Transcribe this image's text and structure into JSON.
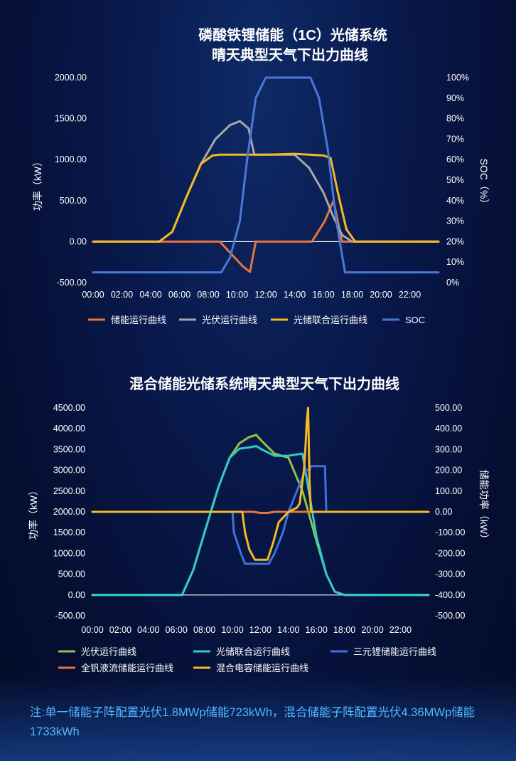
{
  "chart_data": [
    {
      "type": "line",
      "title": [
        "磷酸铁锂储能（1C）光储系统",
        "晴天典型天气下出力曲线"
      ],
      "ylabel": "功率（kW）",
      "y2label": "SOC（%）",
      "ylim": [
        -500,
        2000
      ],
      "y2lim": [
        0,
        100
      ],
      "xlim": [
        0,
        24
      ],
      "x_ticks": [
        "00:00",
        "02:00",
        "04:00",
        "06:00",
        "08:00",
        "10:00",
        "12:00",
        "14:00",
        "16:00",
        "18:00",
        "20:00",
        "22:00"
      ],
      "y_ticks": [
        "-500.00",
        "0.00",
        "500.00",
        "1000.00",
        "1500.00",
        "2000.00"
      ],
      "y2_ticks": [
        "0%",
        "10%",
        "20%",
        "30%",
        "40%",
        "50%",
        "60%",
        "70%",
        "80%",
        "90%",
        "100%"
      ],
      "legend_position": "bottom",
      "series": [
        {
          "name": "储能运行曲线",
          "color": "#e8743b",
          "axis": "left",
          "x": [
            0,
            8.8,
            9.6,
            10.4,
            10.9,
            11.3,
            15.2,
            16.1,
            16.7,
            17.3,
            18,
            24
          ],
          "y": [
            0,
            0,
            -150,
            -300,
            -370,
            0,
            0,
            250,
            500,
            0,
            0,
            0
          ]
        },
        {
          "name": "光伏运行曲线",
          "color": "#a8a8a8",
          "axis": "left",
          "x": [
            0,
            4.6,
            5.5,
            6.5,
            7.5,
            8.5,
            9.5,
            10.2,
            10.8,
            11.2,
            12,
            14,
            15,
            16,
            16.7,
            17.3,
            18,
            24
          ],
          "y": [
            0,
            0,
            120,
            550,
            950,
            1250,
            1420,
            1470,
            1380,
            1060,
            1060,
            1060,
            900,
            600,
            300,
            80,
            0,
            0
          ]
        },
        {
          "name": "光储联合运行曲线",
          "color": "#f5b921",
          "axis": "left",
          "x": [
            0,
            4.6,
            5.5,
            6.5,
            7.5,
            8.3,
            8.8,
            12,
            14,
            16,
            16.5,
            17,
            17.6,
            18.2,
            24
          ],
          "y": [
            0,
            0,
            120,
            550,
            950,
            1050,
            1060,
            1060,
            1070,
            1050,
            1020,
            600,
            150,
            0,
            0
          ]
        },
        {
          "name": "SOC",
          "color": "#4a78d8",
          "axis": "right",
          "x": [
            0,
            8.9,
            9.5,
            10.2,
            10.7,
            11.3,
            12,
            15.1,
            15.7,
            16.3,
            16.9,
            17.5,
            24
          ],
          "y": [
            5,
            5,
            12,
            30,
            60,
            90,
            100,
            100,
            90,
            65,
            30,
            5,
            5
          ]
        }
      ]
    },
    {
      "type": "line",
      "title": [
        "混合储能光储系统晴天典型天气下出力曲线"
      ],
      "ylabel": "功率（kW）",
      "y2label": "储能功率（kW）",
      "ylim": [
        -500,
        4500
      ],
      "y2lim": [
        -500,
        500
      ],
      "xlim": [
        0,
        24
      ],
      "x_ticks": [
        "00:00",
        "02:00",
        "04:00",
        "06:00",
        "08:00",
        "10:00",
        "12:00",
        "14:00",
        "16:00",
        "18:00",
        "20:00",
        "22:00"
      ],
      "y_ticks": [
        "-500.00",
        "0.00",
        "500.00",
        "1000.00",
        "1500.00",
        "2000.00",
        "2500.00",
        "3000.00",
        "3500.00",
        "4000.00",
        "4500.00"
      ],
      "y2_ticks": [
        "-500.00",
        "-400.00",
        "-300.00",
        "-200.00",
        "-100.00",
        "0.00",
        "100.00",
        "200.00",
        "300.00",
        "400.00",
        "500.00"
      ],
      "legend_position": "bottom",
      "series": [
        {
          "name": "光伏运行曲线",
          "color": "#8dc63f",
          "axis": "left",
          "x": [
            0,
            6.4,
            7.2,
            8,
            9,
            9.8,
            10.5,
            11.2,
            11.7,
            12.1,
            13,
            14,
            15,
            16,
            16.7,
            17.3,
            18,
            24
          ],
          "y": [
            0,
            0,
            600,
            1500,
            2600,
            3300,
            3650,
            3800,
            3850,
            3700,
            3400,
            3300,
            2500,
            1300,
            500,
            80,
            0,
            0
          ]
        },
        {
          "name": "光储联合运行曲线",
          "color": "#33c9c9",
          "axis": "left",
          "x": [
            0,
            6.4,
            7.2,
            8,
            9,
            9.8,
            10.5,
            11.2,
            11.7,
            12.1,
            13,
            14,
            15,
            16,
            16.7,
            17.3,
            18,
            24
          ],
          "y": [
            0,
            0,
            600,
            1500,
            2600,
            3300,
            3520,
            3550,
            3580,
            3500,
            3350,
            3350,
            3400,
            1400,
            500,
            80,
            0,
            0
          ]
        },
        {
          "name": "三元锂储能运行曲线",
          "color": "#3f72d8",
          "axis": "right",
          "x": [
            0,
            10,
            10.1,
            10.6,
            10.9,
            11.6,
            12.6,
            13,
            13.6,
            14,
            14.6,
            14.9,
            15.2,
            15.5,
            15.6,
            16.6,
            16.7,
            24
          ],
          "y": [
            0,
            0,
            -100,
            -200,
            -250,
            -250,
            -250,
            -200,
            -100,
            0,
            100,
            150,
            200,
            200,
            220,
            220,
            0,
            0
          ]
        },
        {
          "name": "全钒液流储能运行曲线",
          "color": "#e8743b",
          "axis": "right",
          "x": [
            0,
            11.5,
            12,
            12.5,
            13,
            24
          ],
          "y": [
            0,
            0,
            -5,
            -5,
            0,
            0
          ]
        },
        {
          "name": "混合电容储能运行曲线",
          "color": "#f5b921",
          "axis": "right",
          "x": [
            0,
            10.7,
            10.9,
            11.2,
            11.6,
            12.5,
            12.9,
            13.3,
            14,
            14.6,
            14.8,
            15.1,
            15.2,
            15.3,
            15.4,
            15.5,
            15.6,
            15.8,
            24
          ],
          "y": [
            0,
            0,
            -100,
            -180,
            -230,
            -230,
            -150,
            -50,
            0,
            20,
            40,
            200,
            300,
            430,
            500,
            150,
            0,
            0,
            0
          ]
        }
      ]
    }
  ],
  "note": "注:单一储能子阵配置光伏1.8MWp储能723kWh，混合储能子阵配置光伏4.36MWp储能1733kWh"
}
